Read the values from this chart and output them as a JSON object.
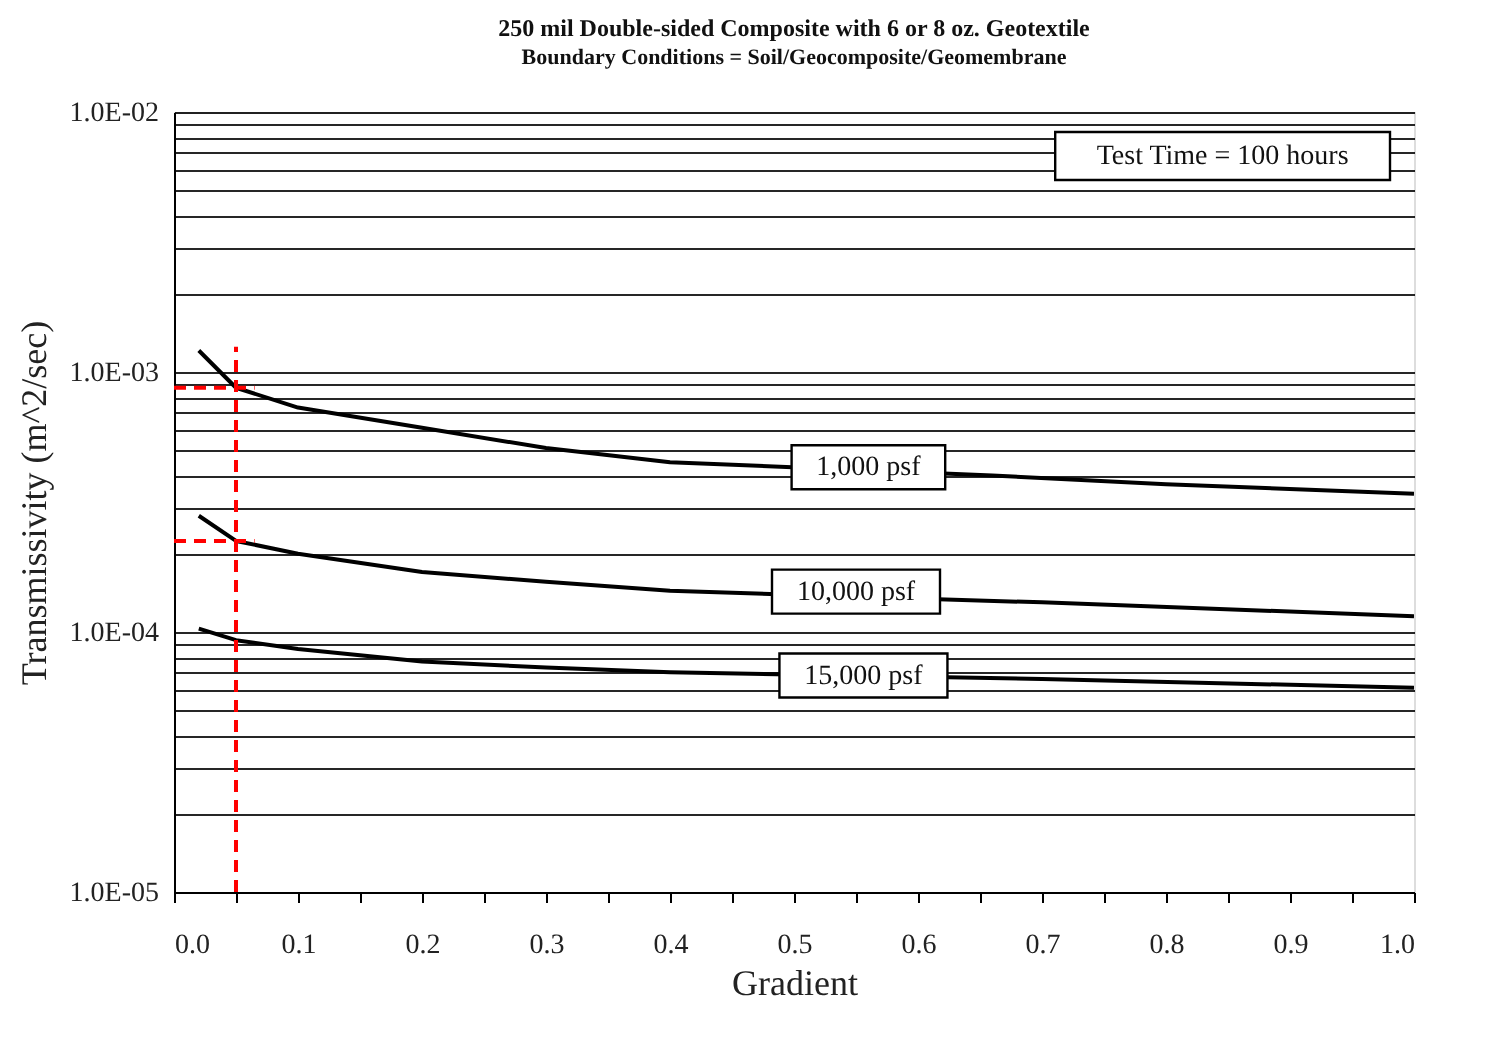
{
  "chart_data": {
    "type": "line",
    "title": "250 mil Double-sided Composite with 6 or 8 oz. Geotextile",
    "subtitle": "Boundary Conditions = Soil/Geocomposite/Geomembrane",
    "xlabel": "Gradient",
    "ylabel": "Transmissivity (m^2/sec)",
    "log": "y",
    "grid": "y",
    "marker": "none",
    "line_style": "solid",
    "xlim": [
      0,
      1
    ],
    "ylim": [
      1e-05,
      0.01
    ],
    "xticks": [
      {
        "value": 0,
        "label": "0.0"
      },
      {
        "value": 0.05,
        "label": null
      },
      {
        "value": 0.1,
        "label": "0.1"
      },
      {
        "value": 0.15,
        "label": null
      },
      {
        "value": 0.2,
        "label": "0.2"
      },
      {
        "value": 0.25,
        "label": null
      },
      {
        "value": 0.3,
        "label": "0.3"
      },
      {
        "value": 0.35,
        "label": null
      },
      {
        "value": 0.4,
        "label": "0.4"
      },
      {
        "value": 0.45,
        "label": null
      },
      {
        "value": 0.5,
        "label": "0.5"
      },
      {
        "value": 0.55,
        "label": null
      },
      {
        "value": 0.6,
        "label": "0.6"
      },
      {
        "value": 0.65,
        "label": null
      },
      {
        "value": 0.7,
        "label": "0.7"
      },
      {
        "value": 0.75,
        "label": null
      },
      {
        "value": 0.8,
        "label": "0.8"
      },
      {
        "value": 0.85,
        "label": null
      },
      {
        "value": 0.9,
        "label": "0.9"
      },
      {
        "value": 0.95,
        "label": null
      },
      {
        "value": 1,
        "label": "1.0"
      }
    ],
    "yticks": [
      {
        "value": 1e-05,
        "label": "1.0E-05"
      },
      {
        "value": 2e-05,
        "label": null
      },
      {
        "value": 3e-05,
        "label": null
      },
      {
        "value": 4e-05,
        "label": null
      },
      {
        "value": 5e-05,
        "label": null
      },
      {
        "value": 6e-05,
        "label": null
      },
      {
        "value": 7e-05,
        "label": null
      },
      {
        "value": 8e-05,
        "label": null
      },
      {
        "value": 9e-05,
        "label": null
      },
      {
        "value": 0.0001,
        "label": "1.0E-04"
      },
      {
        "value": 0.0002,
        "label": null
      },
      {
        "value": 0.0003,
        "label": null
      },
      {
        "value": 0.0004,
        "label": null
      },
      {
        "value": 0.0005,
        "label": null
      },
      {
        "value": 0.0006,
        "label": null
      },
      {
        "value": 0.0007,
        "label": null
      },
      {
        "value": 0.0008,
        "label": null
      },
      {
        "value": 0.0009,
        "label": null
      },
      {
        "value": 0.001,
        "label": "1.0E-03"
      },
      {
        "value": 0.002,
        "label": null
      },
      {
        "value": 0.003,
        "label": null
      },
      {
        "value": 0.004,
        "label": null
      },
      {
        "value": 0.005,
        "label": null
      },
      {
        "value": 0.006,
        "label": null
      },
      {
        "value": 0.007,
        "label": null
      },
      {
        "value": 0.008,
        "label": null
      },
      {
        "value": 0.009,
        "label": null
      },
      {
        "value": 0.01,
        "label": "1.0E-02"
      }
    ],
    "series": [
      {
        "color": "#000000",
        "x": [
          0.02,
          0.05,
          0.1,
          0.2,
          0.3,
          0.4,
          0.66,
          0.8,
          1.0
        ],
        "values": [
          0.00121,
          0.00087,
          0.00073,
          0.00061,
          0.00051,
          0.00045,
          0.0004,
          0.00037,
          0.00034
        ]
      },
      {
        "color": "#000000",
        "x": [
          0.02,
          0.05,
          0.1,
          0.2,
          0.3,
          0.4,
          0.7,
          1.0
        ],
        "values": [
          0.00028,
          0.000224,
          0.0002,
          0.00017,
          0.000156,
          0.000144,
          0.00013,
          0.000115
        ]
      },
      {
        "color": "#000000",
        "x": [
          0.02,
          0.05,
          0.1,
          0.2,
          0.3,
          0.4,
          0.7,
          1.0
        ],
        "values": [
          0.000103,
          9.3e-05,
          8.6e-05,
          7.7e-05,
          7.3e-05,
          7e-05,
          6.6e-05,
          6.1e-05
        ]
      },
      {
        "color": "#ff0000",
        "line_style": "dashed",
        "x": [
          0.05,
          0.05
        ],
        "values": [
          1e-05,
          0.00125
        ]
      },
      {
        "color": "#ff0000",
        "line_style": "dashed",
        "x": [
          0,
          0.065
        ],
        "values": [
          0.00087,
          0.00087
        ]
      },
      {
        "color": "#ff0000",
        "line_style": "dashed",
        "x": [
          0,
          0.065
        ],
        "values": [
          0.000224,
          0.000224
        ]
      }
    ],
    "annotations": [
      "Test Time = 100 hours",
      {
        "text": "1,000 psf",
        "x": 0.56,
        "y": 0.00043
      },
      {
        "text": "10,000 psf",
        "x": 0.55,
        "y": 0.000143
      },
      {
        "text": "15,000 psf",
        "x": 0.556,
        "y": 6.8e-05
      }
    ]
  }
}
